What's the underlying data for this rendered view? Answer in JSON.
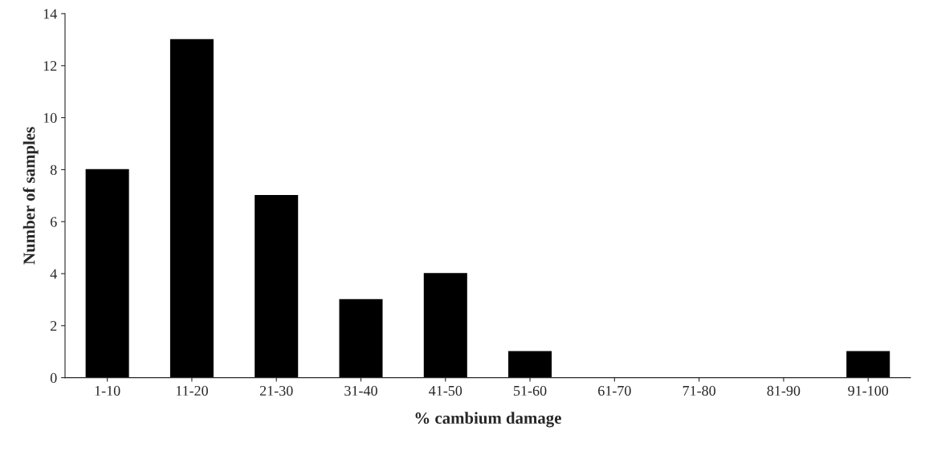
{
  "chart_data": {
    "type": "bar",
    "xlabel": "% cambium damage",
    "ylabel": "Number of samples",
    "categories": [
      "1-10",
      "11-20",
      "21-30",
      "31-40",
      "41-50",
      "51-60",
      "61-70",
      "71-80",
      "81-90",
      "91-100"
    ],
    "values": [
      8,
      13,
      7,
      3,
      4,
      1,
      0,
      0,
      0,
      1
    ],
    "color": "#000000",
    "ylim": [
      0,
      14
    ],
    "yticks": [
      0,
      2,
      4,
      6,
      8,
      10,
      12,
      14
    ],
    "grid": false
  }
}
